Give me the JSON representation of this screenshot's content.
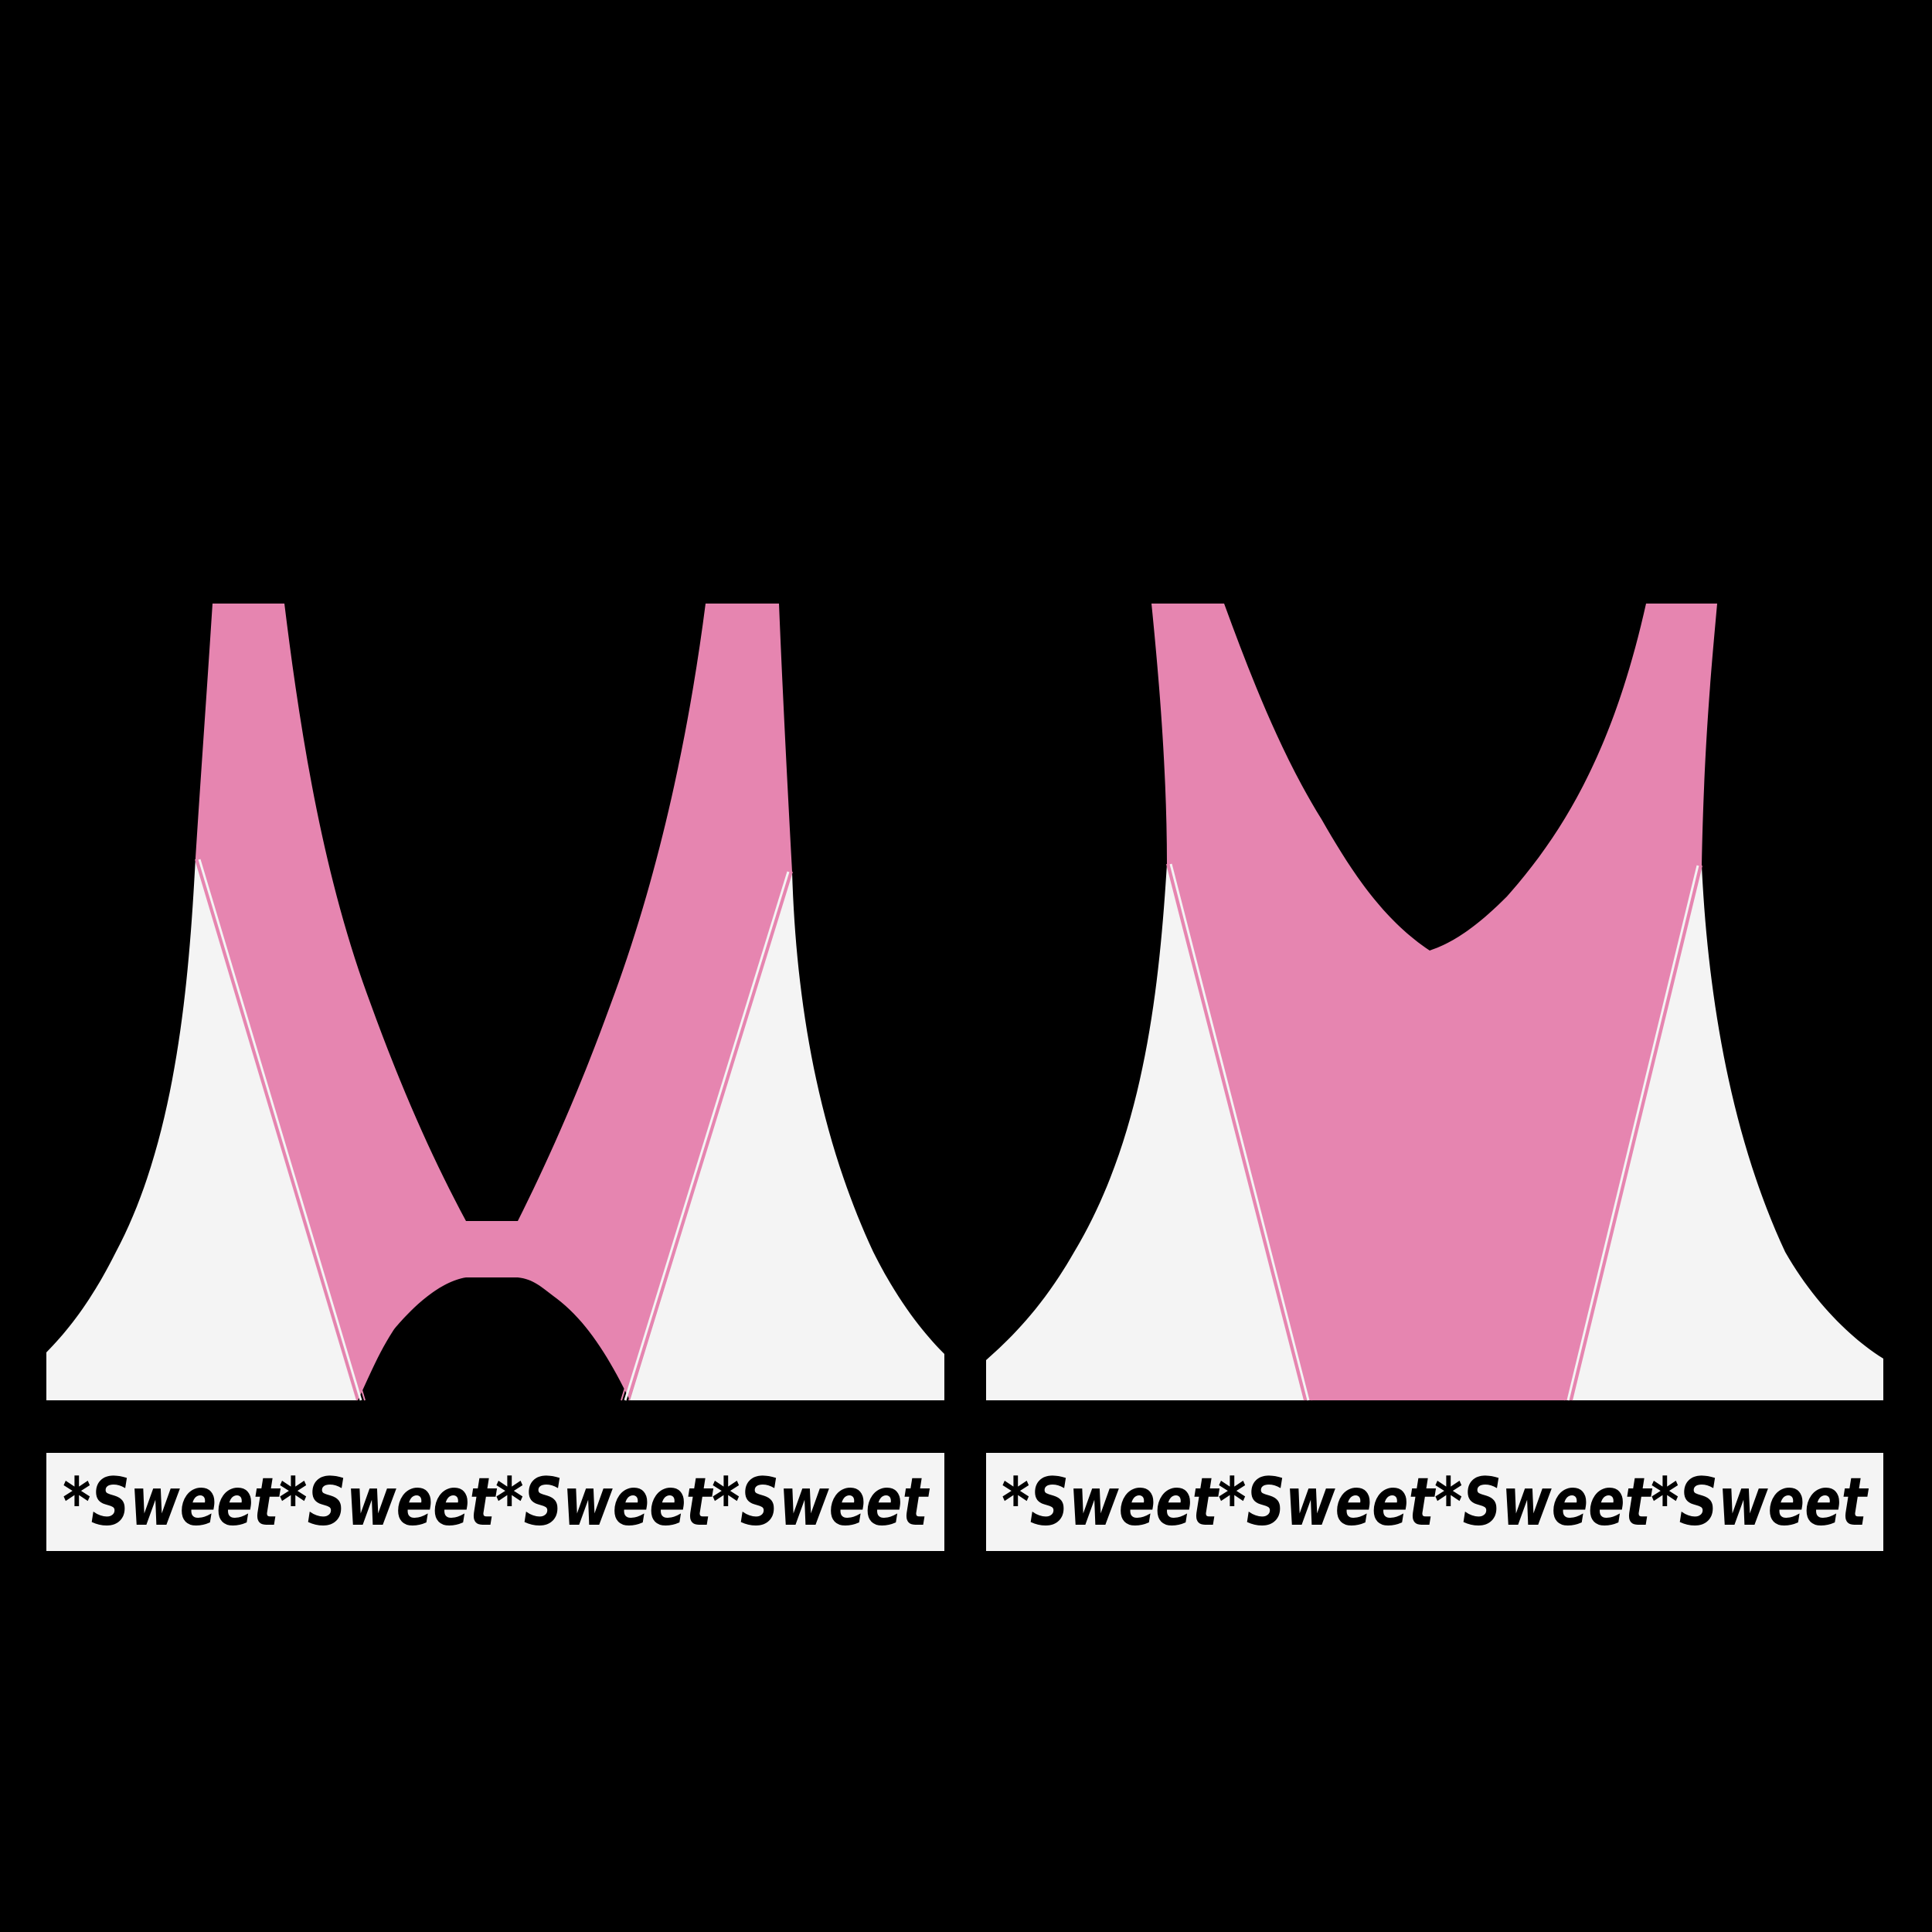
{
  "colors": {
    "background": "#000000",
    "pink": "#E685B0",
    "white": "#F4F4F4",
    "stitch": "#E685B0",
    "text": "#000000"
  },
  "left_garment": {
    "band_text": "*Sweet*Sweet*Sweet*Sweet"
  },
  "right_garment": {
    "band_text": "*Sweet*Sweet*Sweet*Sweet"
  }
}
